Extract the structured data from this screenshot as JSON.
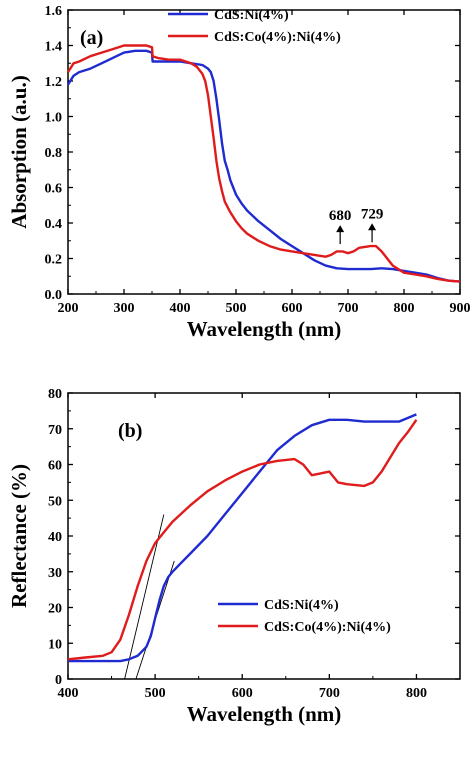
{
  "colors": {
    "ni": "#1f2bd1",
    "co": "#e01b1b",
    "axis": "#000000",
    "fit": "#000000"
  },
  "chart_data": [
    {
      "type": "line",
      "panel_label": "(a)",
      "xlabel": "Wavelength (nm)",
      "ylabel": "Absorption (a.u.)",
      "xlim": [
        200,
        900
      ],
      "ylim": [
        0.0,
        1.6
      ],
      "xticks": [
        200,
        300,
        400,
        500,
        600,
        700,
        800,
        900
      ],
      "yticks": [
        0.0,
        0.2,
        0.4,
        0.6,
        0.8,
        1.0,
        1.2,
        1.4,
        1.6
      ],
      "legend_position": "top-center",
      "annotations": [
        {
          "text": "680",
          "x": 686,
          "y": 0.27
        },
        {
          "text": "729",
          "x": 743,
          "y": 0.28
        }
      ],
      "series": [
        {
          "name": "CdS:Ni(4%)",
          "color_key": "ni",
          "x": [
            200,
            210,
            220,
            240,
            260,
            280,
            300,
            320,
            340,
            350,
            351,
            360,
            380,
            400,
            420,
            440,
            450,
            455,
            460,
            465,
            470,
            475,
            480,
            485,
            490,
            495,
            500,
            510,
            520,
            540,
            560,
            580,
            600,
            620,
            640,
            660,
            680,
            700,
            720,
            740,
            760,
            780,
            800,
            820,
            840,
            860,
            880,
            900
          ],
          "y": [
            1.18,
            1.23,
            1.25,
            1.27,
            1.3,
            1.33,
            1.36,
            1.37,
            1.37,
            1.36,
            1.31,
            1.31,
            1.31,
            1.31,
            1.3,
            1.29,
            1.27,
            1.25,
            1.2,
            1.1,
            0.98,
            0.85,
            0.75,
            0.7,
            0.64,
            0.6,
            0.56,
            0.51,
            0.47,
            0.41,
            0.36,
            0.31,
            0.27,
            0.23,
            0.19,
            0.16,
            0.145,
            0.14,
            0.14,
            0.14,
            0.145,
            0.14,
            0.13,
            0.12,
            0.11,
            0.09,
            0.075,
            0.07
          ]
        },
        {
          "name": "CdS:Co(4%):Ni(4%)",
          "color_key": "co",
          "x": [
            200,
            210,
            220,
            240,
            260,
            280,
            300,
            320,
            340,
            350,
            351,
            360,
            380,
            400,
            420,
            430,
            440,
            445,
            450,
            455,
            460,
            465,
            470,
            475,
            480,
            490,
            500,
            510,
            520,
            540,
            560,
            580,
            600,
            620,
            640,
            660,
            670,
            680,
            690,
            700,
            710,
            720,
            740,
            750,
            760,
            770,
            780,
            800,
            820,
            840,
            860,
            880,
            900
          ],
          "y": [
            1.25,
            1.3,
            1.31,
            1.34,
            1.36,
            1.38,
            1.4,
            1.4,
            1.4,
            1.39,
            1.34,
            1.33,
            1.32,
            1.32,
            1.3,
            1.28,
            1.24,
            1.2,
            1.12,
            1.0,
            0.88,
            0.75,
            0.65,
            0.58,
            0.52,
            0.46,
            0.41,
            0.37,
            0.34,
            0.3,
            0.27,
            0.25,
            0.24,
            0.23,
            0.22,
            0.21,
            0.22,
            0.24,
            0.24,
            0.23,
            0.24,
            0.26,
            0.27,
            0.27,
            0.24,
            0.2,
            0.16,
            0.12,
            0.11,
            0.1,
            0.085,
            0.075,
            0.07
          ]
        }
      ]
    },
    {
      "type": "line",
      "panel_label": "(b)",
      "xlabel": "Wavelength (nm)",
      "ylabel": "Reflectance (%)",
      "xlim": [
        400,
        850
      ],
      "ylim": [
        0,
        80
      ],
      "xticks": [
        400,
        500,
        600,
        700,
        800
      ],
      "yticks": [
        0,
        10,
        20,
        30,
        40,
        50,
        60,
        70,
        80
      ],
      "legend_position": "bottom-right",
      "fit_lines": [
        {
          "x": [
            465,
            510
          ],
          "y": [
            0,
            46
          ]
        },
        {
          "x": [
            478,
            522
          ],
          "y": [
            0,
            33
          ]
        }
      ],
      "series": [
        {
          "name": "CdS:Ni(4%)",
          "color_key": "ni",
          "x": [
            400,
            420,
            440,
            460,
            470,
            480,
            490,
            495,
            500,
            505,
            510,
            515,
            520,
            530,
            540,
            560,
            580,
            600,
            620,
            640,
            660,
            680,
            700,
            720,
            740,
            760,
            780,
            790,
            800
          ],
          "y": [
            5,
            5,
            5,
            5,
            5.5,
            6.5,
            9,
            12,
            17,
            22,
            26,
            28.5,
            30,
            32.5,
            35,
            40,
            46,
            52,
            58,
            64,
            68,
            71,
            72.5,
            72.5,
            72,
            72,
            72,
            73,
            74
          ]
        },
        {
          "name": "CdS:Co(4%):Ni(4%)",
          "color_key": "co",
          "x": [
            400,
            420,
            440,
            450,
            460,
            470,
            480,
            490,
            500,
            510,
            520,
            540,
            560,
            580,
            600,
            620,
            640,
            660,
            670,
            680,
            690,
            700,
            710,
            720,
            740,
            750,
            760,
            770,
            780,
            790,
            800
          ],
          "y": [
            5.5,
            6,
            6.5,
            7.5,
            11,
            18,
            26,
            33,
            38,
            41,
            44,
            48.5,
            52.5,
            55.5,
            58,
            60,
            61,
            61.5,
            60,
            57,
            57.5,
            58,
            55,
            54.5,
            54,
            55,
            58,
            62,
            66,
            69,
            72.5
          ]
        }
      ]
    }
  ]
}
